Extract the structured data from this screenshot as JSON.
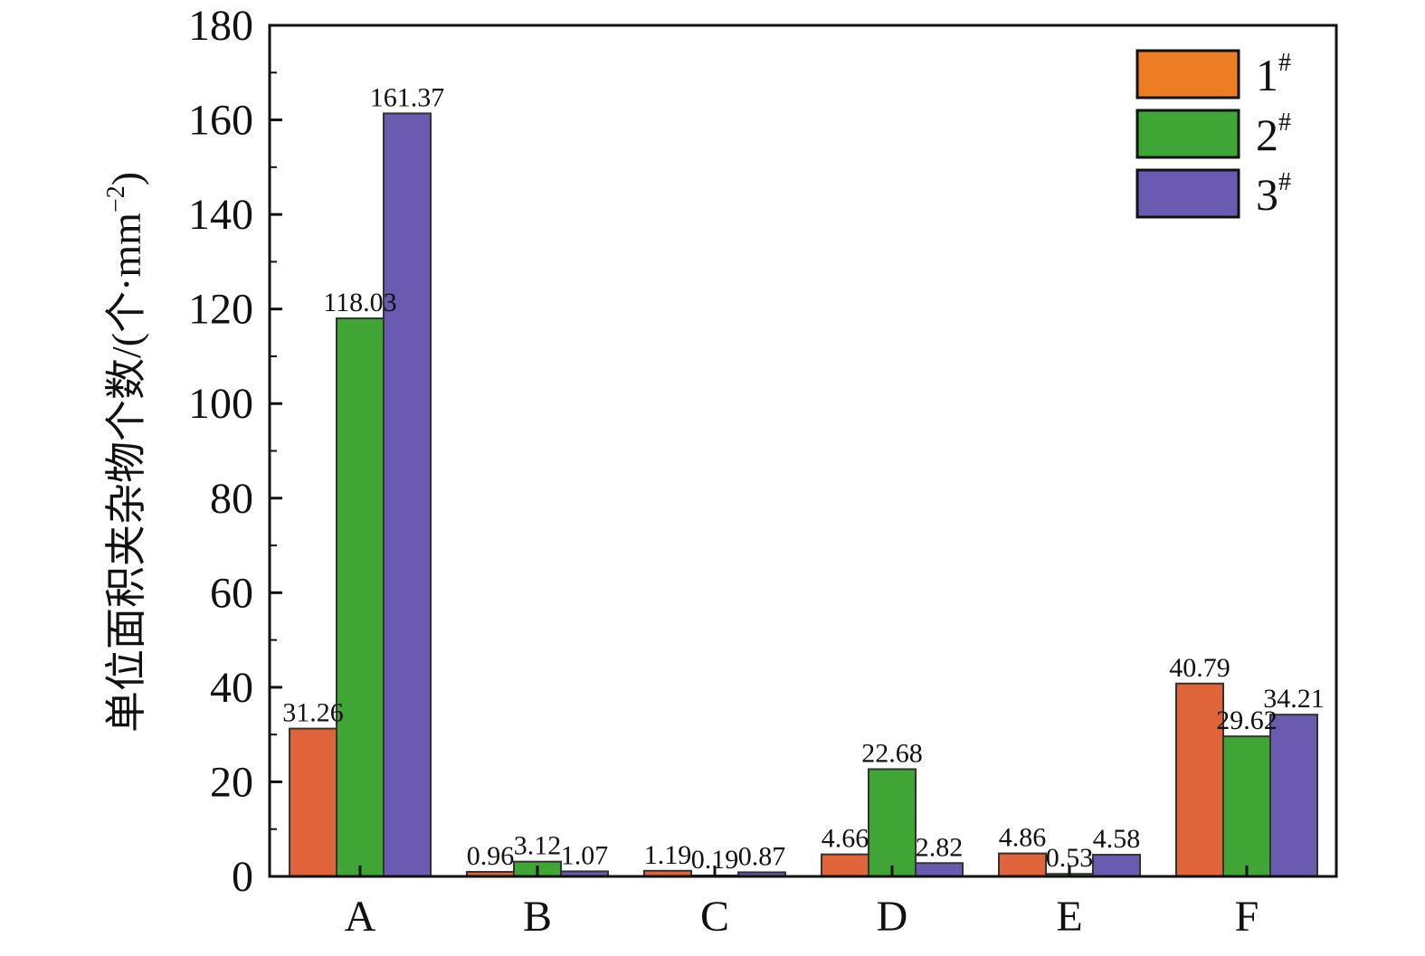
{
  "chart_data": {
    "type": "bar",
    "title": "",
    "xlabel": "",
    "ylabel": "单位面积夹杂物个数/(个·mm",
    "ylabel_sup": "−2",
    "ylabel_close": ")",
    "ylim": [
      0,
      180
    ],
    "yticks": [
      0,
      20,
      40,
      60,
      80,
      100,
      120,
      140,
      160,
      180
    ],
    "categories": [
      "A",
      "B",
      "C",
      "D",
      "E",
      "F"
    ],
    "series": [
      {
        "name": "1",
        "sup": "#",
        "color": "#e0643a",
        "legend_color": "#ec7d24",
        "values": [
          31.26,
          0.96,
          1.19,
          4.66,
          4.86,
          40.79
        ],
        "labels": [
          "31.26",
          "0.96",
          "1.19",
          "4.66",
          "4.86",
          "40.79"
        ]
      },
      {
        "name": "2",
        "sup": "#",
        "color": "#3fa535",
        "legend_color": "#3fa535",
        "values": [
          118.03,
          3.12,
          0.19,
          22.68,
          0.53,
          29.62
        ],
        "labels": [
          "118.03",
          "3.12",
          "0.19",
          "22.68",
          "0.53",
          "29.62"
        ]
      },
      {
        "name": "3",
        "sup": "#",
        "color": "#6a5ab0",
        "legend_color": "#6a5ab0",
        "values": [
          161.37,
          1.07,
          0.87,
          2.82,
          4.58,
          34.21
        ],
        "labels": [
          "161.37",
          "1.07",
          "0.87",
          "2.82",
          "4.58",
          "34.21"
        ]
      }
    ],
    "grid": false,
    "legend_position": "top-right"
  }
}
